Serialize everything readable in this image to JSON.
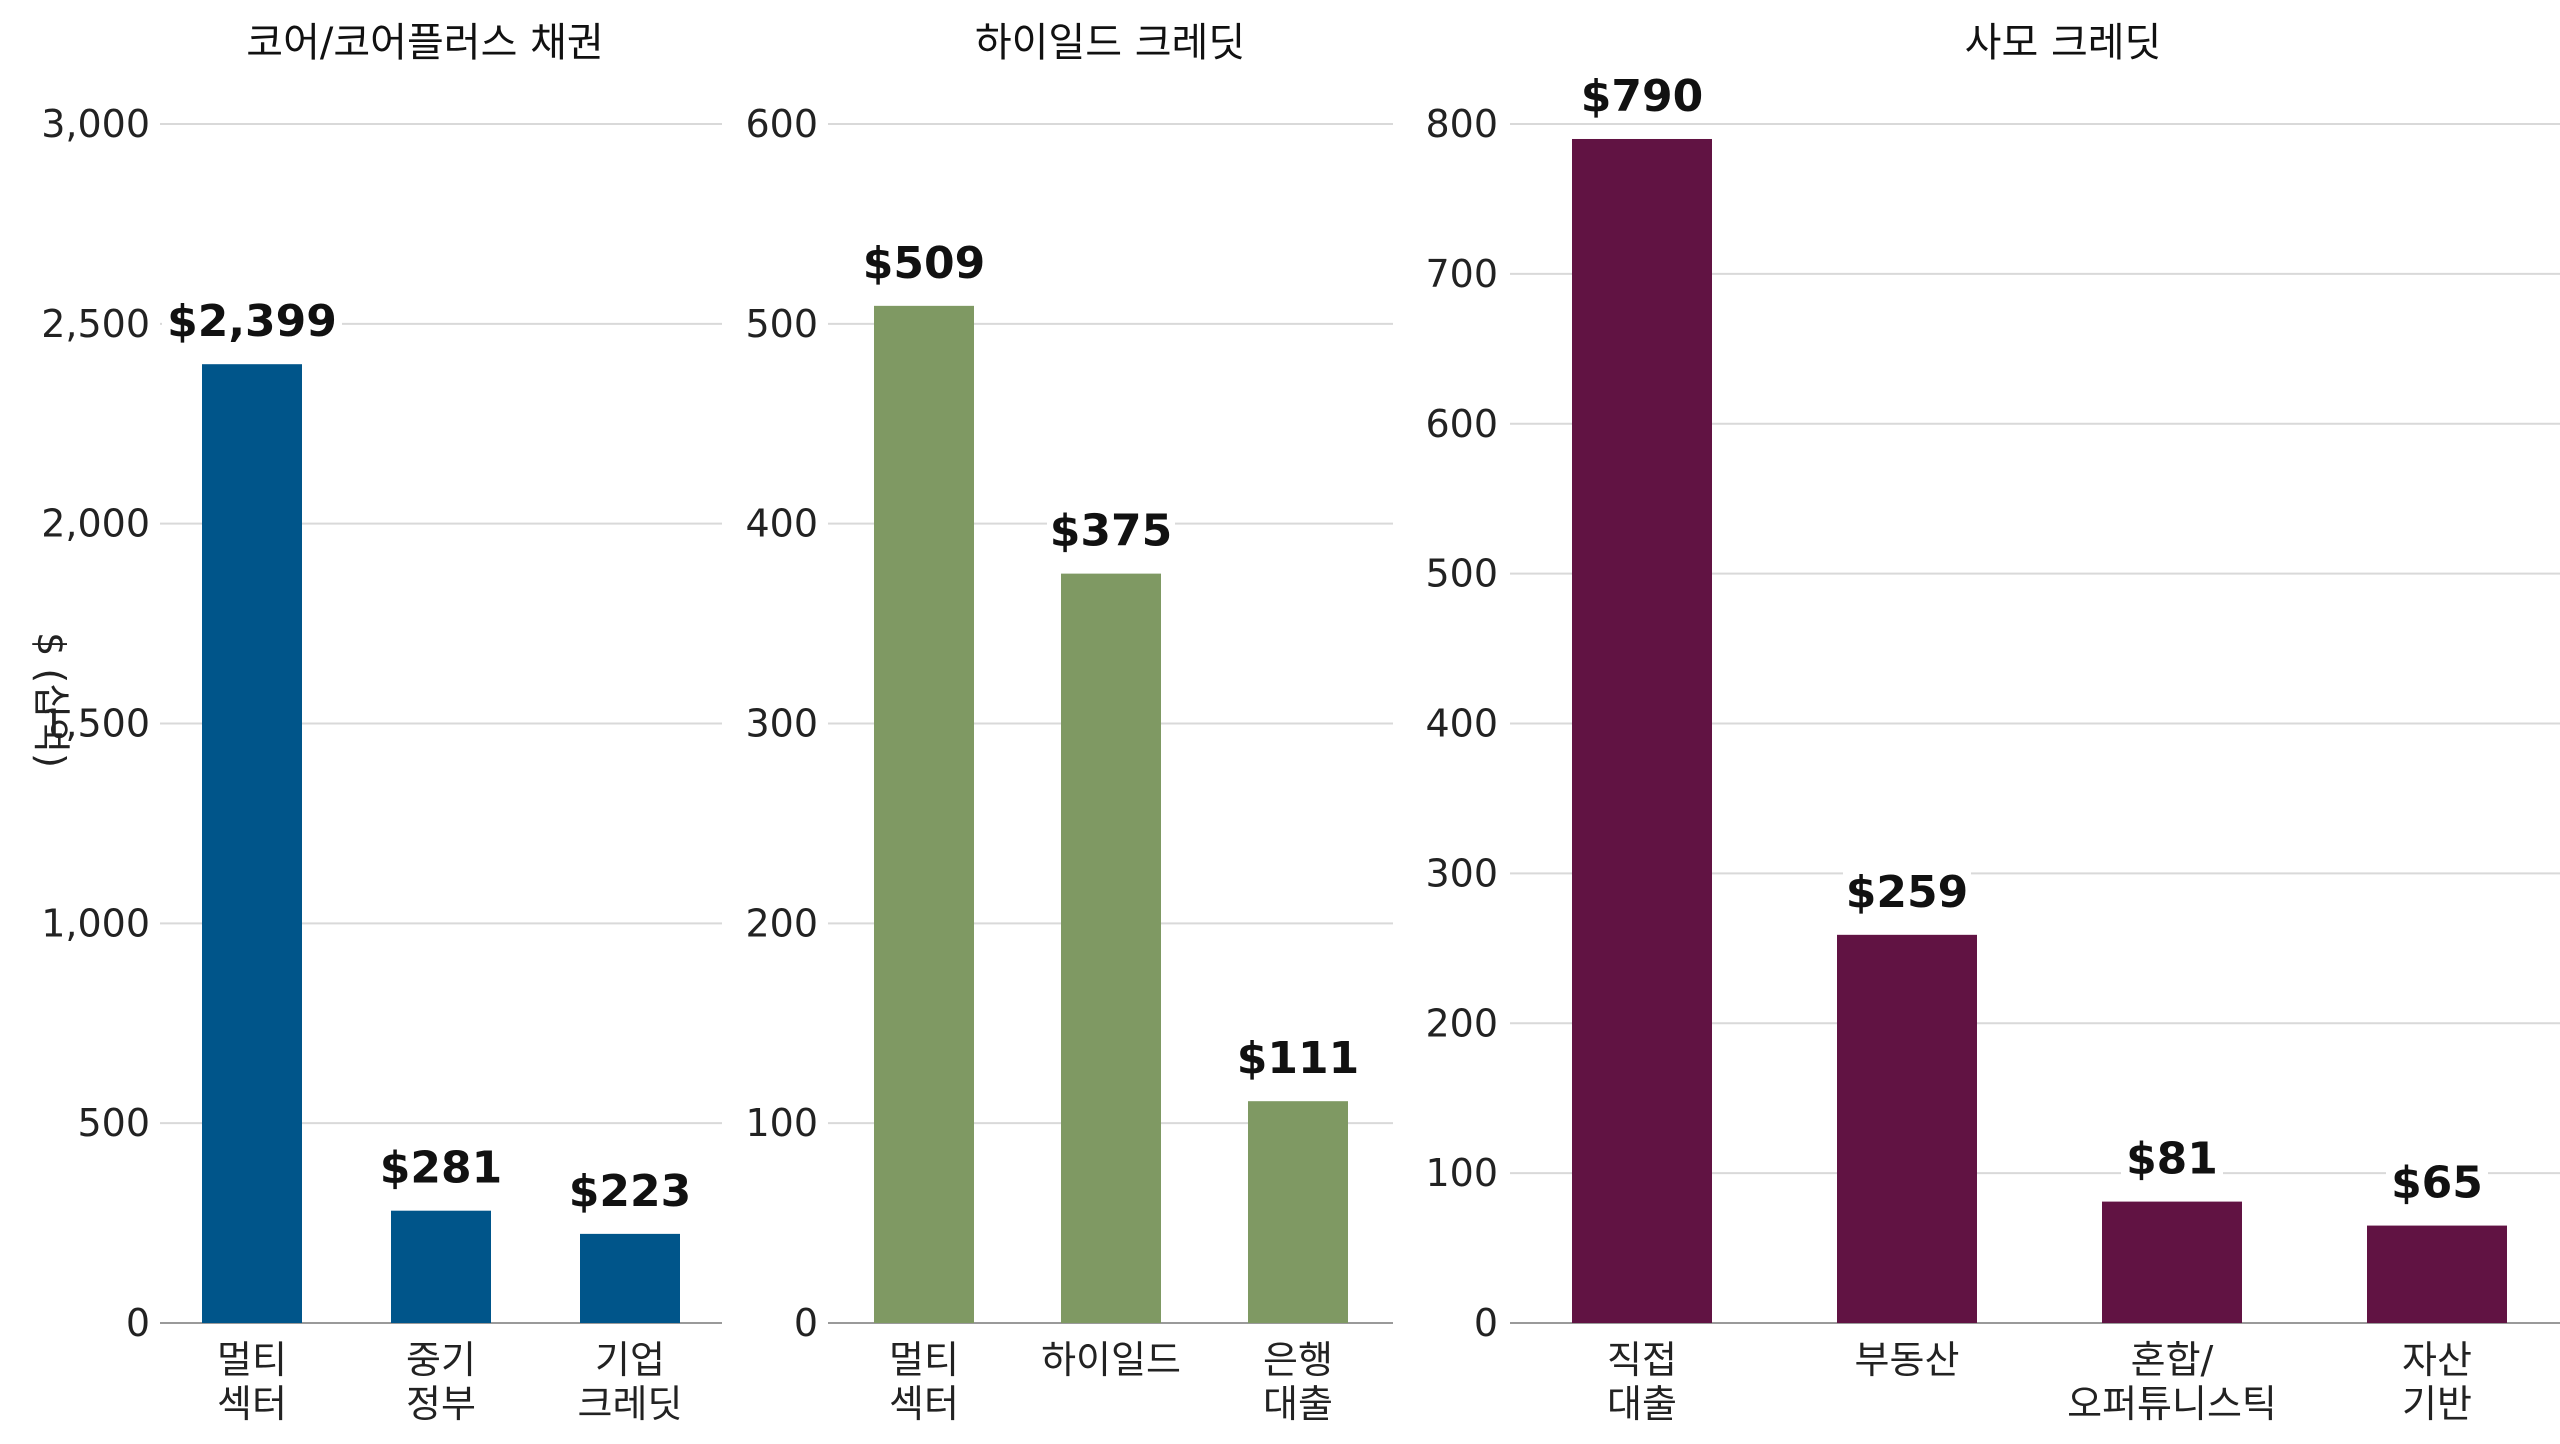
{
  "chart_data": [
    {
      "type": "bar",
      "title": "코어/코어플러스 채권",
      "ylabel": "$ (십억)",
      "ylim": [
        0,
        3000
      ],
      "yticks": [
        0,
        500,
        1000,
        1500,
        2000,
        2500,
        3000
      ],
      "ytick_labels": [
        "0",
        "500",
        "1,000",
        "1,500",
        "2,000",
        "2,500",
        "3,000"
      ],
      "grid": true,
      "color": "#00558A",
      "categories": [
        [
          "멀티",
          "섹터"
        ],
        [
          "중기",
          "정부"
        ],
        [
          "기업",
          "크레딧"
        ]
      ],
      "values": [
        2399,
        281,
        223
      ],
      "value_labels": [
        "$2,399",
        "$281",
        "$223"
      ]
    },
    {
      "type": "bar",
      "title": "하이일드 크레딧",
      "ylim": [
        0,
        600
      ],
      "yticks": [
        0,
        100,
        200,
        300,
        400,
        500,
        600
      ],
      "ytick_labels": [
        "0",
        "100",
        "200",
        "300",
        "400",
        "500",
        "600"
      ],
      "grid": true,
      "color": "#7F9963",
      "categories": [
        [
          "멀티",
          "섹터"
        ],
        [
          "하이일드"
        ],
        [
          "은행",
          "대출"
        ]
      ],
      "values": [
        509,
        375,
        111
      ],
      "value_labels": [
        "$509",
        "$375",
        "$111"
      ]
    },
    {
      "type": "bar",
      "title": "사모 크레딧",
      "ylim": [
        0,
        800
      ],
      "yticks": [
        0,
        100,
        200,
        300,
        400,
        500,
        600,
        700,
        800
      ],
      "ytick_labels": [
        "0",
        "100",
        "200",
        "300",
        "400",
        "500",
        "600",
        "700",
        "800"
      ],
      "grid": true,
      "color": "#611343",
      "categories": [
        [
          "직접",
          "대출"
        ],
        [
          "부동산"
        ],
        [
          "혼합/",
          "오퍼튜니스틱"
        ],
        [
          "자산",
          "기반"
        ]
      ],
      "values": [
        790,
        259,
        81,
        65
      ],
      "value_labels": [
        "$790",
        "$259",
        "$81",
        "$65"
      ]
    }
  ]
}
